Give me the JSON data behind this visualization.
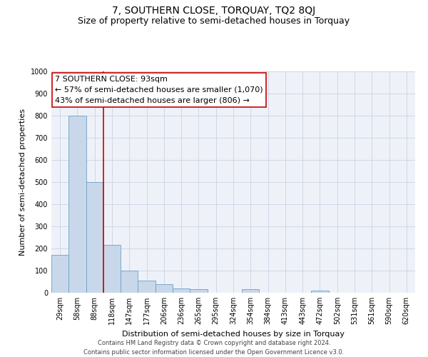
{
  "title": "7, SOUTHERN CLOSE, TORQUAY, TQ2 8QJ",
  "subtitle": "Size of property relative to semi-detached houses in Torquay",
  "xlabel": "Distribution of semi-detached houses by size in Torquay",
  "ylabel": "Number of semi-detached properties",
  "annotation_line1": "7 SOUTHERN CLOSE: 93sqm",
  "annotation_line2": "← 57% of semi-detached houses are smaller (1,070)",
  "annotation_line3": "43% of semi-detached houses are larger (806) →",
  "footer_line1": "Contains HM Land Registry data © Crown copyright and database right 2024.",
  "footer_line2": "Contains public sector information licensed under the Open Government Licence v3.0.",
  "bar_labels": [
    "29sqm",
    "58sqm",
    "88sqm",
    "118sqm",
    "147sqm",
    "177sqm",
    "206sqm",
    "236sqm",
    "265sqm",
    "295sqm",
    "324sqm",
    "354sqm",
    "384sqm",
    "413sqm",
    "443sqm",
    "472sqm",
    "502sqm",
    "531sqm",
    "561sqm",
    "590sqm",
    "620sqm"
  ],
  "bar_values": [
    170,
    800,
    500,
    215,
    100,
    55,
    40,
    18,
    15,
    0,
    0,
    15,
    0,
    0,
    0,
    10,
    0,
    0,
    0,
    0,
    0
  ],
  "bar_color": "#c8d8ea",
  "bar_edge_color": "#6aa0c8",
  "property_line_color": "#cc0000",
  "annotation_box_edge_color": "#cc0000",
  "ylim": [
    0,
    1000
  ],
  "yticks": [
    0,
    100,
    200,
    300,
    400,
    500,
    600,
    700,
    800,
    900,
    1000
  ],
  "grid_color": "#c8d4e4",
  "background_color": "#eef2f8",
  "title_fontsize": 10,
  "subtitle_fontsize": 9,
  "axis_label_fontsize": 8,
  "tick_fontsize": 7,
  "annotation_fontsize": 8,
  "footer_fontsize": 6
}
